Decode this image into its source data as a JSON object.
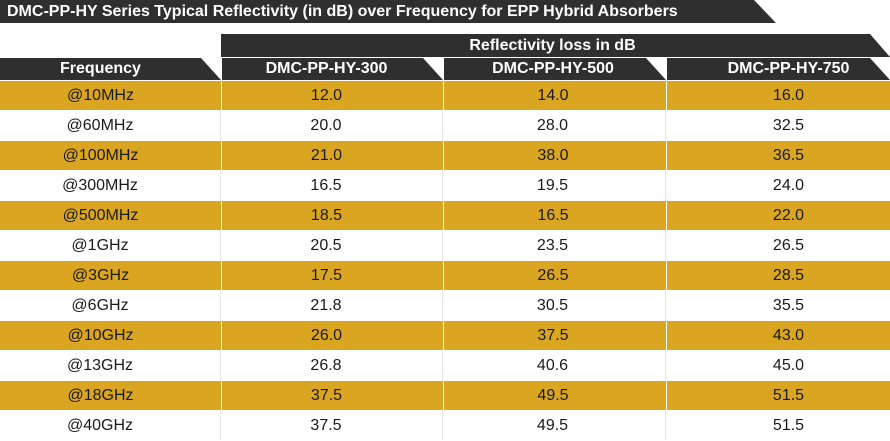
{
  "title": "DMC-PP-HY Series Typical Reflectivity (in dB) over Frequency for EPP Hybrid Absorbers",
  "group_header": "Reflectivity loss in dB",
  "columns": {
    "frequency": "Frequency",
    "col1": "DMC-PP-HY-300",
    "col2": "DMC-PP-HY-500",
    "col3": "DMC-PP-HY-750"
  },
  "colors": {
    "header_bg": "#2f2f2f",
    "band": "#daa520",
    "header_text": "#ffffff"
  },
  "rows": [
    {
      "freq": "@10MHz",
      "v1": "12.0",
      "v2": "14.0",
      "v3": "16.0"
    },
    {
      "freq": "@60MHz",
      "v1": "20.0",
      "v2": "28.0",
      "v3": "32.5"
    },
    {
      "freq": "@100MHz",
      "v1": "21.0",
      "v2": "38.0",
      "v3": "36.5"
    },
    {
      "freq": "@300MHz",
      "v1": "16.5",
      "v2": "19.5",
      "v3": "24.0"
    },
    {
      "freq": "@500MHz",
      "v1": "18.5",
      "v2": "16.5",
      "v3": "22.0"
    },
    {
      "freq": "@1GHz",
      "v1": "20.5",
      "v2": "23.5",
      "v3": "26.5"
    },
    {
      "freq": "@3GHz",
      "v1": "17.5",
      "v2": "26.5",
      "v3": "28.5"
    },
    {
      "freq": "@6GHz",
      "v1": "21.8",
      "v2": "30.5",
      "v3": "35.5"
    },
    {
      "freq": "@10GHz",
      "v1": "26.0",
      "v2": "37.5",
      "v3": "43.0"
    },
    {
      "freq": "@13GHz",
      "v1": "26.8",
      "v2": "40.6",
      "v3": "45.0"
    },
    {
      "freq": "@18GHz",
      "v1": "37.5",
      "v2": "49.5",
      "v3": "51.5"
    },
    {
      "freq": "@40GHz",
      "v1": "37.5",
      "v2": "49.5",
      "v3": "51.5"
    }
  ]
}
